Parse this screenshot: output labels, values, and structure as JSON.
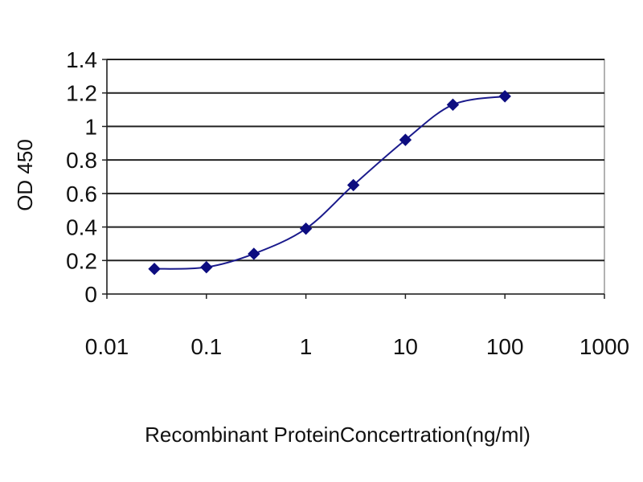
{
  "chart_data": {
    "type": "line",
    "title": "",
    "xlabel": "Recombinant ProteinConcertration(ng/ml)",
    "ylabel": "OD 450",
    "x_scale": "log",
    "xlim": [
      0.01,
      1000
    ],
    "ylim": [
      0,
      1.4
    ],
    "x_tick_labels": [
      "0.01",
      "0.1",
      "1",
      "10",
      "100",
      "1000"
    ],
    "y_tick_labels": [
      "0",
      "0.2",
      "0.4",
      "0.6",
      "0.8",
      "1",
      "1.2",
      "1.4"
    ],
    "grid": "horizontal",
    "legend": "none",
    "series": [
      {
        "x": [
          0.03,
          0.1,
          0.3,
          1,
          3,
          10,
          30,
          100
        ],
        "y": [
          0.15,
          0.16,
          0.24,
          0.39,
          0.65,
          0.92,
          1.13,
          1.18
        ]
      }
    ],
    "colors": {
      "series": "#1a1a8c",
      "marker": "#0d0d80",
      "grid": "#222222",
      "frame": "#999999"
    }
  }
}
